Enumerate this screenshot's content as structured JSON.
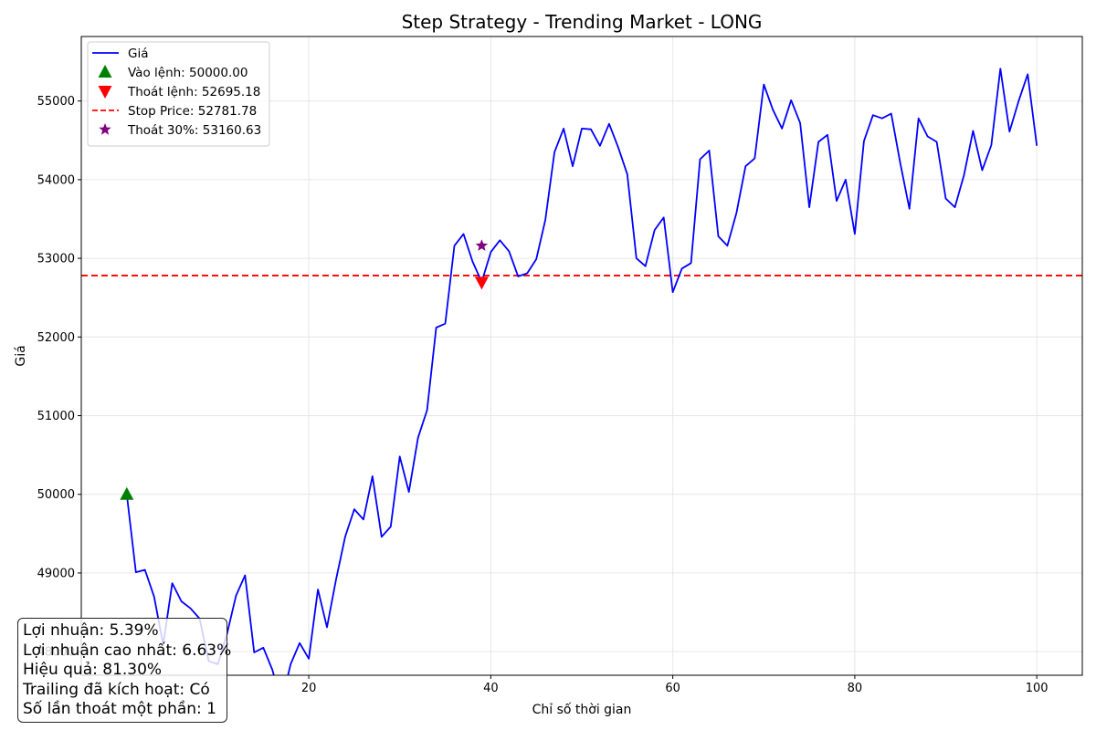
{
  "chart_data": {
    "type": "line",
    "title": "Step Strategy - Trending Market - LONG",
    "xlabel": "Chỉ số thời gian",
    "ylabel": "Giá",
    "xlim": [
      -5,
      105
    ],
    "ylim": [
      47700,
      55820
    ],
    "xticks": [
      20,
      40,
      60,
      80,
      100
    ],
    "yticks": [
      48000,
      49000,
      50000,
      51000,
      52000,
      53000,
      54000,
      55000
    ],
    "grid": true,
    "legend_position": "top-left",
    "series": [
      {
        "name": "Giá",
        "color": "#0000ff",
        "x": [
          0,
          1,
          2,
          3,
          4,
          5,
          6,
          7,
          8,
          9,
          10,
          11,
          12,
          13,
          14,
          15,
          16,
          17,
          18,
          19,
          20,
          21,
          22,
          23,
          24,
          25,
          26,
          27,
          28,
          29,
          30,
          31,
          32,
          33,
          34,
          35,
          36,
          37,
          38,
          39,
          40,
          41,
          42,
          43,
          44,
          45,
          46,
          47,
          48,
          49,
          50,
          51,
          52,
          53,
          54,
          55,
          56,
          57,
          58,
          59,
          60,
          61,
          62,
          63,
          64,
          65,
          66,
          67,
          68,
          69,
          70,
          71,
          72,
          73,
          74,
          75,
          76,
          77,
          78,
          79,
          80,
          81,
          82,
          83,
          84,
          85,
          86,
          87,
          88,
          89,
          90,
          91,
          92,
          93,
          94,
          95,
          96,
          97,
          98,
          99,
          100
        ],
        "values": [
          50000,
          49010,
          49040,
          48700,
          48090,
          48870,
          48640,
          48550,
          48420,
          47880,
          47840,
          48220,
          48710,
          48970,
          47990,
          48050,
          47770,
          47350,
          47840,
          48110,
          47910,
          48790,
          48310,
          48920,
          49460,
          49810,
          49680,
          50230,
          49460,
          49590,
          50480,
          50030,
          50720,
          51070,
          52120,
          52170,
          53160,
          53310,
          52960,
          52700,
          53080,
          53230,
          53090,
          52770,
          52810,
          52990,
          53490,
          54350,
          54650,
          54170,
          54650,
          54640,
          54430,
          54710,
          54410,
          54070,
          53000,
          52900,
          53360,
          53520,
          52570,
          52870,
          52940,
          54260,
          54370,
          53280,
          53160,
          53580,
          54170,
          54270,
          55210,
          54890,
          54650,
          55010,
          54720,
          53650,
          54480,
          54570,
          53730,
          54000,
          53310,
          54490,
          54820,
          54780,
          54840,
          54210,
          53630,
          54780,
          54550,
          54480,
          53760,
          53650,
          54060,
          54620,
          54120,
          54440,
          55410,
          54610,
          55000,
          55340,
          54430
        ]
      }
    ],
    "markers": [
      {
        "label": "Vào lệnh: 50000.00",
        "shape": "triangle-up",
        "color": "#008000",
        "x": 0,
        "y": 50000
      },
      {
        "label": "Thoát lệnh: 52695.18",
        "shape": "triangle-down",
        "color": "#ff0000",
        "x": 39,
        "y": 52695.18
      },
      {
        "label": "Thoát 30%: 53160.63",
        "shape": "star",
        "color": "#800080",
        "x": 39,
        "y": 53160.63
      }
    ],
    "hline": {
      "label": "Stop Price: 52781.78",
      "color": "#ff0000",
      "style": "dashed",
      "y": 52781.78
    }
  },
  "info_box": [
    "Lợi nhuận: 5.39%",
    "Lợi nhuận cao nhất: 6.63%",
    "Hiệu quả: 81.30%",
    "Trailing đã kích hoạt: Có",
    "Số lần thoát một phần: 1"
  ]
}
